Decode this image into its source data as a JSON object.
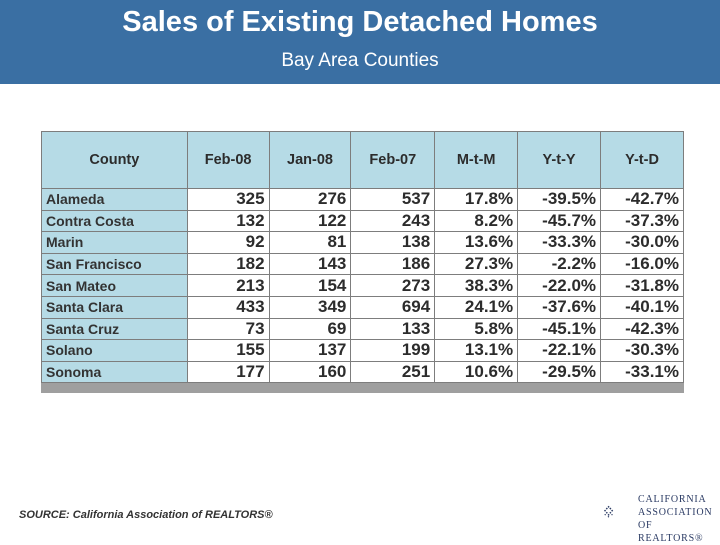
{
  "header": {
    "title": "Sales of Existing Detached Homes",
    "subtitle": "Bay Area Counties"
  },
  "table": {
    "columns": [
      "County",
      "Feb-08",
      "Jan-08",
      "Feb-07",
      "M-t-M",
      "Y-t-Y",
      "Y-t-D"
    ],
    "rows": [
      [
        "Alameda",
        "325",
        "276",
        "537",
        "17.8%",
        "-39.5%",
        "-42.7%"
      ],
      [
        "Contra Costa",
        "132",
        "122",
        "243",
        "8.2%",
        "-45.7%",
        "-37.3%"
      ],
      [
        "Marin",
        "92",
        "81",
        "138",
        "13.6%",
        "-33.3%",
        "-30.0%"
      ],
      [
        "San Francisco",
        "182",
        "143",
        "186",
        "27.3%",
        "-2.2%",
        "-16.0%"
      ],
      [
        "San Mateo",
        "213",
        "154",
        "273",
        "38.3%",
        "-22.0%",
        "-31.8%"
      ],
      [
        "Santa Clara",
        "433",
        "349",
        "694",
        "24.1%",
        "-37.6%",
        "-40.1%"
      ],
      [
        "Santa Cruz",
        "73",
        "69",
        "133",
        "5.8%",
        "-45.1%",
        "-42.3%"
      ],
      [
        "Solano",
        "155",
        "137",
        "199",
        "13.1%",
        "-22.1%",
        "-30.3%"
      ],
      [
        "Sonoma",
        "177",
        "160",
        "251",
        "10.6%",
        "-29.5%",
        "-33.1%"
      ]
    ]
  },
  "footer": {
    "source": "SOURCE: California Association of REALTORS®"
  },
  "logo": {
    "lines": [
      "CALIFORNIA",
      "ASSOCIATION",
      "OF REALTORS®"
    ],
    "icon": "car-logo-diamond-icon"
  },
  "colors": {
    "header_bg": "#3a6fa3",
    "header_cell_bg": "#b6dbe6",
    "logo_navy": "#2a3a63"
  }
}
